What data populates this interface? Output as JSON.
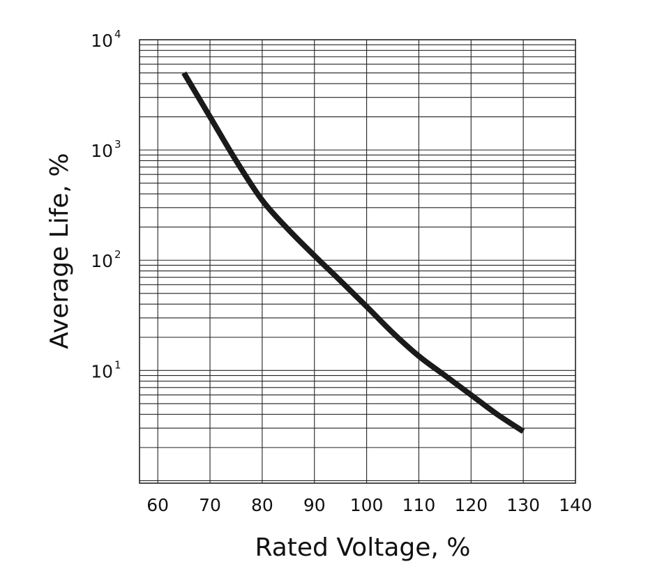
{
  "chart_data": {
    "type": "line",
    "xlabel": "Rated Voltage, %",
    "ylabel": "Average Life, %",
    "x_scale": "linear",
    "y_scale": "log",
    "xlim": [
      56.5,
      140
    ],
    "ylim": [
      0.95,
      10000
    ],
    "grid": true,
    "x_ticks": [
      {
        "value": 60,
        "label": "60"
      },
      {
        "value": 70,
        "label": "70"
      },
      {
        "value": 80,
        "label": "80"
      },
      {
        "value": 90,
        "label": "90"
      },
      {
        "value": 100,
        "label": "100"
      },
      {
        "value": 110,
        "label": "110"
      },
      {
        "value": 120,
        "label": "120"
      },
      {
        "value": 130,
        "label": "130"
      },
      {
        "value": 140,
        "label": "140"
      }
    ],
    "y_ticks": [
      {
        "value": 10,
        "base": "10",
        "exp": "1"
      },
      {
        "value": 100,
        "base": "10",
        "exp": "2"
      },
      {
        "value": 1000,
        "base": "10",
        "exp": "3"
      },
      {
        "value": 10000,
        "base": "10",
        "exp": "4"
      }
    ],
    "series": [
      {
        "color": "#1a1a1a",
        "points": [
          [
            65,
            5000
          ],
          [
            70,
            2000
          ],
          [
            75,
            800
          ],
          [
            80,
            350
          ],
          [
            85,
            190
          ],
          [
            90,
            110
          ],
          [
            95,
            65
          ],
          [
            100,
            38
          ],
          [
            105,
            22
          ],
          [
            110,
            13.5
          ],
          [
            115,
            9
          ],
          [
            120,
            6
          ],
          [
            125,
            4
          ],
          [
            130,
            2.8
          ]
        ]
      }
    ]
  }
}
